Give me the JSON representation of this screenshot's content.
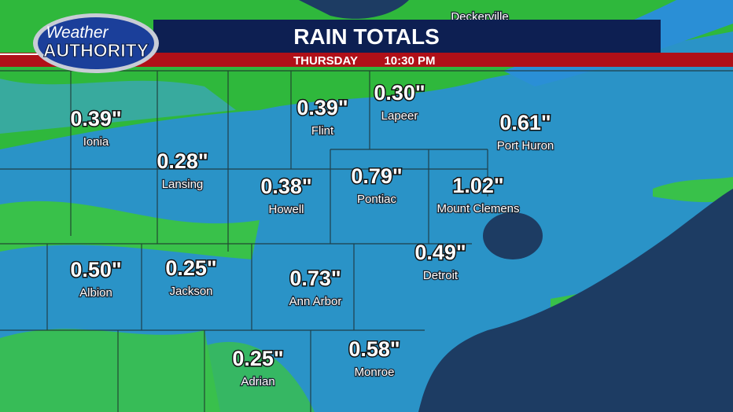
{
  "header": {
    "logo_top": "Weather",
    "logo_bottom": "AUTHORITY",
    "title": "RAIN TOTALS",
    "day": "THURSDAY",
    "time": "10:30 PM"
  },
  "partial_labels": [
    "Deckerville"
  ],
  "locations": [
    {
      "name": "Ionia",
      "total": "0.39\""
    },
    {
      "name": "Flint",
      "total": "0.39\""
    },
    {
      "name": "Lapeer",
      "total": "0.30\""
    },
    {
      "name": "Port Huron",
      "total": "0.61\""
    },
    {
      "name": "Lansing",
      "total": "0.28\""
    },
    {
      "name": "Howell",
      "total": "0.38\""
    },
    {
      "name": "Pontiac",
      "total": "0.79\""
    },
    {
      "name": "Mount Clemens",
      "total": "1.02\""
    },
    {
      "name": "Albion",
      "total": "0.50\""
    },
    {
      "name": "Jackson",
      "total": "0.25\""
    },
    {
      "name": "Ann Arbor",
      "total": "0.73\""
    },
    {
      "name": "Detroit",
      "total": "0.49\""
    },
    {
      "name": "Adrian",
      "total": "0.25\""
    },
    {
      "name": "Monroe",
      "total": "0.58\""
    }
  ]
}
